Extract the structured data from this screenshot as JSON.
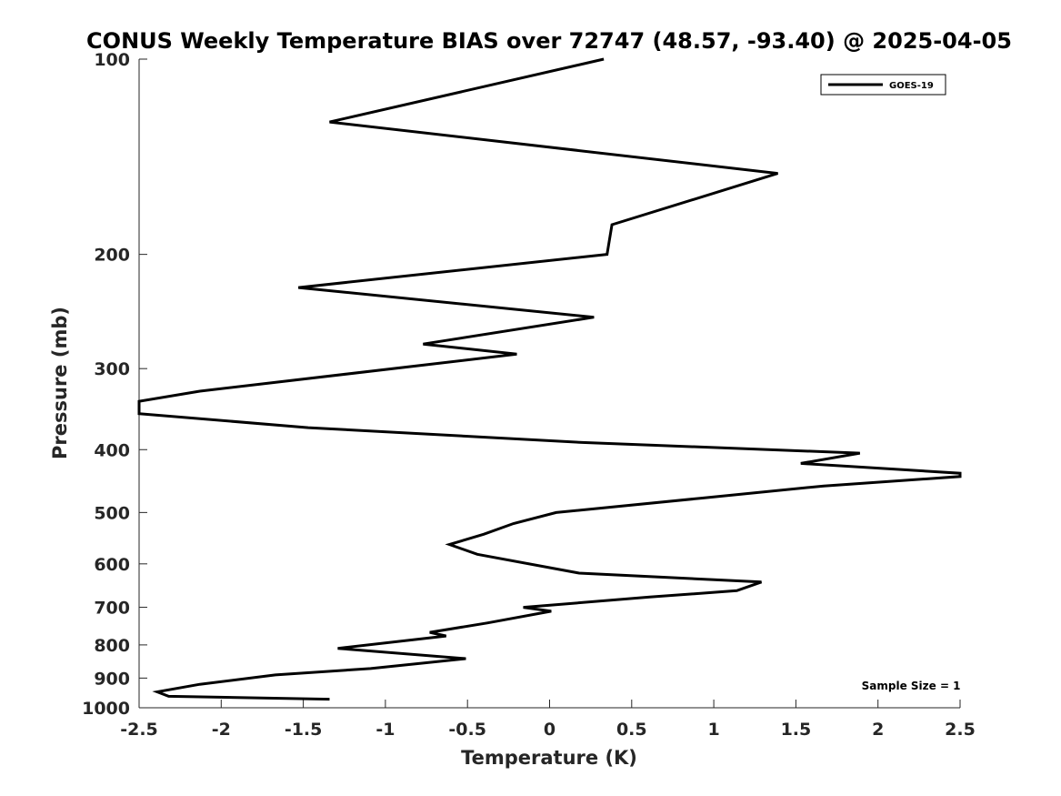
{
  "chart_data": {
    "type": "line",
    "title": "CONUS Weekly Temperature BIAS over 72747 (48.57, -93.40) @ 2025-04-05",
    "xlabel": "Temperature (K)",
    "ylabel": "Pressure (mb)",
    "xlim": [
      -2.5,
      2.5
    ],
    "ylim": [
      1000,
      100
    ],
    "yscale": "log",
    "yreverse": true,
    "xticks": [
      -2.5,
      -2,
      -1.5,
      -1,
      -0.5,
      0,
      0.5,
      1,
      1.5,
      2,
      2.5
    ],
    "xtick_labels": [
      "-2.5",
      "-2",
      "-1.5",
      "-1",
      "-0.5",
      "0",
      "0.5",
      "1",
      "1.5",
      "2",
      "2.5"
    ],
    "yticks": [
      100,
      200,
      300,
      400,
      500,
      600,
      700,
      800,
      900,
      1000
    ],
    "ytick_labels": [
      "100",
      "200",
      "300",
      "400",
      "500",
      "600",
      "700",
      "800",
      "900",
      "1000"
    ],
    "grid": false,
    "legend_position": "top-right",
    "series": [
      {
        "name": "GOES-19",
        "color": "#000000",
        "points": [
          [
            0.33,
            100
          ],
          [
            -1.34,
            125
          ],
          [
            1.39,
            150
          ],
          [
            0.38,
            180
          ],
          [
            0.35,
            200
          ],
          [
            -1.53,
            225
          ],
          [
            0.27,
            250
          ],
          [
            -0.77,
            275
          ],
          [
            -0.2,
            285
          ],
          [
            -2.13,
            325
          ],
          [
            -2.5,
            337
          ],
          [
            -2.5,
            352
          ],
          [
            -1.47,
            370
          ],
          [
            0.2,
            390
          ],
          [
            1.89,
            405
          ],
          [
            1.53,
            420
          ],
          [
            2.5,
            435
          ],
          [
            2.5,
            440
          ],
          [
            1.67,
            455
          ],
          [
            0.93,
            475
          ],
          [
            0.04,
            500
          ],
          [
            -0.22,
            520
          ],
          [
            -0.4,
            540
          ],
          [
            -0.61,
            560
          ],
          [
            -0.44,
            580
          ],
          [
            0.18,
            620
          ],
          [
            1.29,
            640
          ],
          [
            1.14,
            660
          ],
          [
            0.61,
            675
          ],
          [
            -0.16,
            700
          ],
          [
            0.01,
            710
          ],
          [
            -0.38,
            740
          ],
          [
            -0.73,
            765
          ],
          [
            -0.63,
            775
          ],
          [
            -1.29,
            810
          ],
          [
            -0.51,
            840
          ],
          [
            -1.09,
            870
          ],
          [
            -1.67,
            890
          ],
          [
            -2.13,
            920
          ],
          [
            -2.39,
            945
          ],
          [
            -2.32,
            960
          ],
          [
            -1.34,
            970
          ]
        ]
      }
    ],
    "annotations": [
      {
        "text": "Sample Size = 1",
        "x": 1.9,
        "y": 920
      }
    ]
  }
}
